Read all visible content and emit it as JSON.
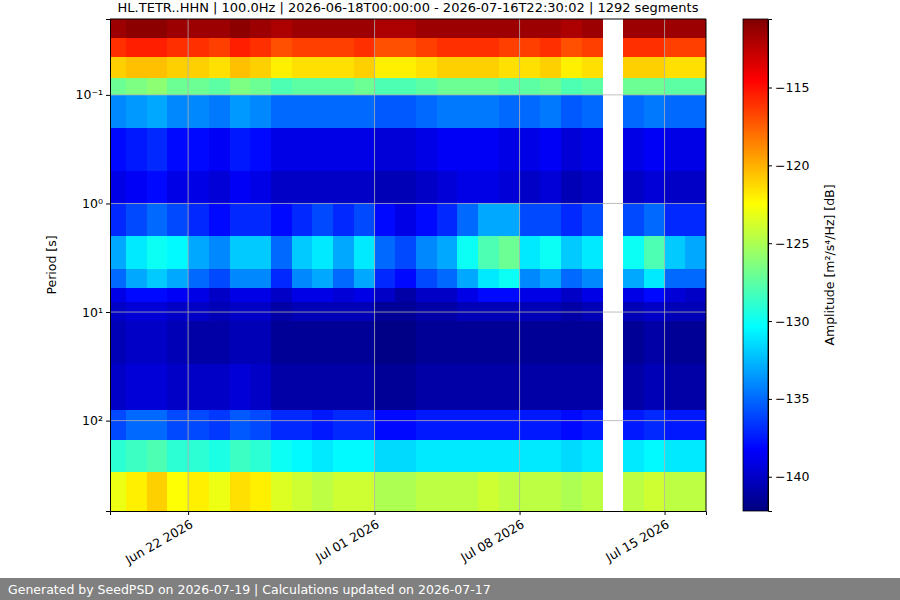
{
  "chart_data": {
    "type": "heatmap",
    "title": "HL.TETR..HHN | 100.0Hz | 2026-06-18T00:00:00 - 2026-07-16T22:30:02 | 1292 segments",
    "y_label": "Period [s]",
    "log": "y",
    "grid": true,
    "xlim": [
      "2026-06-18T05:30",
      "2026-07-17T00:00"
    ],
    "xticks": [
      {
        "value": "2026-06-22T00:00",
        "label": "Jun 22 2026"
      },
      {
        "value": "2026-07-01T00:00",
        "label": "Jul 01 2026"
      },
      {
        "value": "2026-07-08T00:00",
        "label": "Jul 08 2026"
      },
      {
        "value": "2026-07-15T00:00",
        "label": "Jul 15 2026"
      }
    ],
    "ylim": [
      0.02,
      680
    ],
    "yticks": [
      {
        "value": 0.1,
        "label": "10⁻¹"
      },
      {
        "value": 1,
        "label": "10⁰"
      },
      {
        "value": 10,
        "label": "10¹"
      },
      {
        "value": 100,
        "label": "10²"
      }
    ],
    "x_edges": [
      "2026-06-18T00:00",
      "2026-06-19T00:00",
      "2026-06-20T00:00",
      "2026-06-21T00:00",
      "2026-06-22T00:00",
      "2026-06-23T00:00",
      "2026-06-24T00:00",
      "2026-06-25T00:00",
      "2026-06-26T00:00",
      "2026-06-27T00:00",
      "2026-06-28T00:00",
      "2026-06-29T00:00",
      "2026-06-30T00:00",
      "2026-07-01T00:00",
      "2026-07-02T00:00",
      "2026-07-03T00:00",
      "2026-07-04T00:00",
      "2026-07-05T00:00",
      "2026-07-06T00:00",
      "2026-07-07T00:00",
      "2026-07-08T00:00",
      "2026-07-09T00:00",
      "2026-07-10T00:00",
      "2026-07-11T00:00",
      "2026-07-12T00:00",
      "2026-07-13T00:00",
      "2026-07-14T00:00",
      "2026-07-15T00:00",
      "2026-07-16T00:00",
      "2026-07-17T00:00"
    ],
    "y_edges": [
      0.02,
      0.03,
      0.045,
      0.07,
      0.1,
      0.2,
      0.5,
      1,
      2,
      4,
      6,
      8,
      12,
      30,
      80,
      150,
      300,
      680
    ],
    "z": [
      [
        -111.5,
        -111,
        -111,
        -111.5,
        -111.5,
        -111.5,
        -111,
        -111.5,
        -112,
        -111.5,
        -111.5,
        -111.5,
        -111.5,
        -112,
        -112,
        -111.5,
        -111.5,
        -111.5,
        -111.5,
        -111.5,
        -111.5,
        -111.5,
        -112,
        -111.5,
        null,
        -111.5,
        -111.5,
        -111.5,
        -111.5
      ],
      [
        -116,
        -115.5,
        -115.5,
        -116,
        -116,
        -116.5,
        -115.5,
        -116,
        -117,
        -116.5,
        -116.5,
        -116.5,
        -116,
        -117,
        -117,
        -116.5,
        -116,
        -116,
        -116,
        -116.5,
        -116.5,
        -116,
        -117,
        -116.5,
        null,
        -116,
        -116,
        -116.5,
        -116.5
      ],
      [
        -121,
        -120.5,
        -120.5,
        -121,
        -121,
        -121.5,
        -120.5,
        -121,
        -122,
        -121.5,
        -121.5,
        -121.5,
        -121,
        -122,
        -122,
        -121.5,
        -121,
        -121,
        -121,
        -121.5,
        -121.5,
        -121,
        -122,
        -121.5,
        null,
        -121,
        -121,
        -121.5,
        -121.5
      ],
      [
        -127,
        -126.5,
        -126,
        -127,
        -127,
        -127.5,
        -126.5,
        -127,
        -128,
        -127.5,
        -127.5,
        -127.5,
        -127,
        -128,
        -128,
        -127.5,
        -127,
        -127,
        -127,
        -127.5,
        -127.5,
        -127,
        -128,
        -127.5,
        null,
        -127,
        -127,
        -127.5,
        -127.5
      ],
      [
        -134,
        -133.5,
        -133,
        -134,
        -134,
        -134.5,
        -133.5,
        -134,
        -135,
        -135,
        -135,
        -135,
        -135,
        -135.5,
        -135.5,
        -135,
        -134.5,
        -134.5,
        -134.5,
        -135,
        -135,
        -134.5,
        -135.5,
        -135,
        null,
        -135,
        -134.5,
        -135,
        -135
      ],
      [
        -138,
        -137.5,
        -137,
        -138,
        -138,
        -138.5,
        -137.5,
        -138,
        -139,
        -139,
        -139,
        -139,
        -139,
        -139.5,
        -139.5,
        -139,
        -138.5,
        -138.5,
        -138.5,
        -139,
        -139,
        -138.5,
        -139.5,
        -139,
        null,
        -139,
        -138.5,
        -139,
        -139
      ],
      [
        -139,
        -138.5,
        -138,
        -139,
        -139,
        -139.5,
        -138.5,
        -139,
        -140,
        -140,
        -140,
        -140,
        -140,
        -140.5,
        -140.5,
        -140,
        -139.5,
        -139,
        -139,
        -139.5,
        -140,
        -139.5,
        -140.5,
        -140,
        null,
        -140,
        -139.5,
        -140,
        -140
      ],
      [
        -137,
        -136,
        -135,
        -136,
        -137,
        -138,
        -137,
        -137,
        -138,
        -137,
        -136,
        -137,
        -136,
        -138,
        -139,
        -138,
        -137,
        -135,
        -133,
        -133,
        -136,
        -136,
        -137,
        -136,
        null,
        -136,
        -135,
        -137,
        -137
      ],
      [
        -133,
        -131,
        -130,
        -130.5,
        -133,
        -134,
        -132,
        -132,
        -135,
        -132,
        -131,
        -133,
        -131,
        -135,
        -136,
        -134,
        -133,
        -130,
        -128,
        -127,
        -131,
        -130,
        -132,
        -131,
        null,
        -130,
        -128,
        -132,
        -133
      ],
      [
        -135,
        -133,
        -132,
        -133,
        -135,
        -136,
        -134,
        -134,
        -137,
        -134,
        -133,
        -135,
        -133,
        -137,
        -138,
        -136,
        -135,
        -133,
        -131,
        -130,
        -134,
        -133,
        -135,
        -134,
        null,
        -133,
        -131,
        -135,
        -135
      ],
      [
        -139,
        -138,
        -138,
        -138.5,
        -139,
        -140,
        -139,
        -139,
        -140,
        -139,
        -139,
        -139.5,
        -139,
        -140,
        -141,
        -140,
        -140,
        -139,
        -138,
        -138,
        -139,
        -139,
        -140,
        -139,
        null,
        -139,
        -138,
        -139.5,
        -140
      ],
      [
        -140,
        -139.5,
        -139.5,
        -140,
        -140,
        -140.5,
        -140,
        -140,
        -141,
        -140.5,
        -140.5,
        -140.5,
        -140.5,
        -141.5,
        -141.5,
        -141,
        -141,
        -140.5,
        -140.5,
        -140.5,
        -140.5,
        -140.5,
        -141,
        -140.5,
        null,
        -140.5,
        -140,
        -140.5,
        -140.5
      ],
      [
        -140.5,
        -140,
        -140,
        -140.5,
        -141,
        -141,
        -140.5,
        -140.5,
        -141.5,
        -141.5,
        -141.5,
        -141.5,
        -141.5,
        -142,
        -142,
        -141.5,
        -141.5,
        -141.5,
        -141.5,
        -141.5,
        -141.5,
        -141.5,
        -141.5,
        -141.5,
        null,
        -141.5,
        -141,
        -141.5,
        -141.5
      ],
      [
        -140,
        -139.5,
        -139.5,
        -140,
        -140,
        -140,
        -139.5,
        -140,
        -141,
        -141,
        -141,
        -141,
        -141,
        -141.5,
        -141.5,
        -141,
        -141,
        -141,
        -141,
        -141,
        -141,
        -141,
        -141,
        -141,
        null,
        -141,
        -140.5,
        -141,
        -141
      ],
      [
        -136,
        -135,
        -135,
        -136,
        -136,
        -136.5,
        -135.5,
        -136,
        -137,
        -137,
        -137.5,
        -137,
        -137,
        -138,
        -138,
        -137.5,
        -137.5,
        -137.5,
        -137.5,
        -137.5,
        -137.5,
        -137.5,
        -138,
        -137.5,
        null,
        -137.5,
        -137,
        -137.5,
        -137.5
      ],
      [
        -129,
        -128.5,
        -128,
        -129,
        -129,
        -129.5,
        -128.5,
        -129,
        -130,
        -130.5,
        -131,
        -130.5,
        -130.5,
        -131.5,
        -131.5,
        -131,
        -131,
        -131,
        -131,
        -131,
        -131,
        -131,
        -131.5,
        -131,
        null,
        -131,
        -130.5,
        -131,
        -131
      ],
      [
        -123,
        -122,
        -121,
        -122.5,
        -122,
        -123,
        -121.5,
        -122,
        -123.5,
        -124,
        -124.5,
        -124,
        -124,
        -125,
        -125,
        -124.5,
        -124.5,
        -124.5,
        -124,
        -124.5,
        -124.5,
        -124.5,
        -125,
        -124.5,
        null,
        -124.5,
        -124,
        -124.5,
        -124.5
      ]
    ],
    "colorbar": {
      "label": "Amplitude [m²/s⁴/Hz] [dB]",
      "range": [
        -142.2,
        -110.6
      ],
      "ticks": [
        {
          "value": -140,
          "label": "−140"
        },
        {
          "value": -135,
          "label": "−135"
        },
        {
          "value": -130,
          "label": "−130"
        },
        {
          "value": -125,
          "label": "−125"
        },
        {
          "value": -120,
          "label": "−120"
        },
        {
          "value": -115,
          "label": "−115"
        }
      ]
    }
  },
  "footer": {
    "text": "Generated by SeedPSD on 2026-07-19 | Calculations updated on 2026-07-17"
  }
}
